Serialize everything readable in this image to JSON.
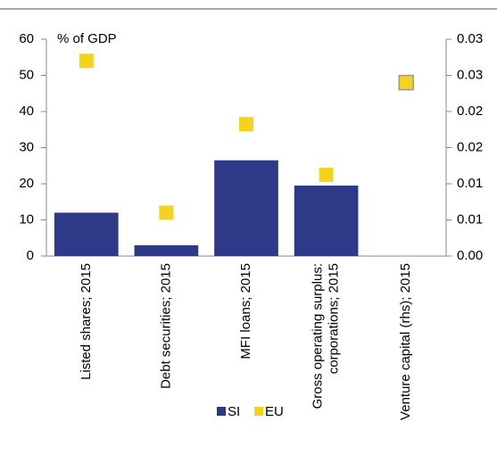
{
  "chart_data": {
    "type": "bar",
    "y_label": "% of GDP",
    "categories": [
      "Listed shares; 2015",
      "Debt securities; 2015",
      "MFI loans; 2015",
      "Gross operating surplus:\ncorporations; 2015",
      "Venture capital (rhs); 2015"
    ],
    "series": [
      {
        "name": "SI",
        "type": "bar",
        "color": "#2e3a87",
        "values": [
          12,
          3,
          26.5,
          19.5,
          null
        ]
      },
      {
        "name": "EU",
        "type": "scatter",
        "color": "#f5d31d",
        "values": [
          54,
          12,
          36.5,
          22.5,
          0.024
        ],
        "axes": [
          "y",
          "y",
          "y",
          "y",
          "y2"
        ]
      }
    ],
    "ylim": [
      0,
      60
    ],
    "yticks": [
      0,
      10,
      20,
      30,
      40,
      50,
      60
    ],
    "y2lim": [
      0,
      0.03
    ],
    "y2ticks": [
      {
        "value": 0,
        "label": "0.00"
      },
      {
        "value": 0.005,
        "label": "0.01"
      },
      {
        "value": 0.01,
        "label": "0.01"
      },
      {
        "value": 0.015,
        "label": "0.02"
      },
      {
        "value": 0.02,
        "label": "0.02"
      },
      {
        "value": 0.025,
        "label": "0.03"
      },
      {
        "value": 0.03,
        "label": "0.03"
      }
    ],
    "grid": false
  }
}
